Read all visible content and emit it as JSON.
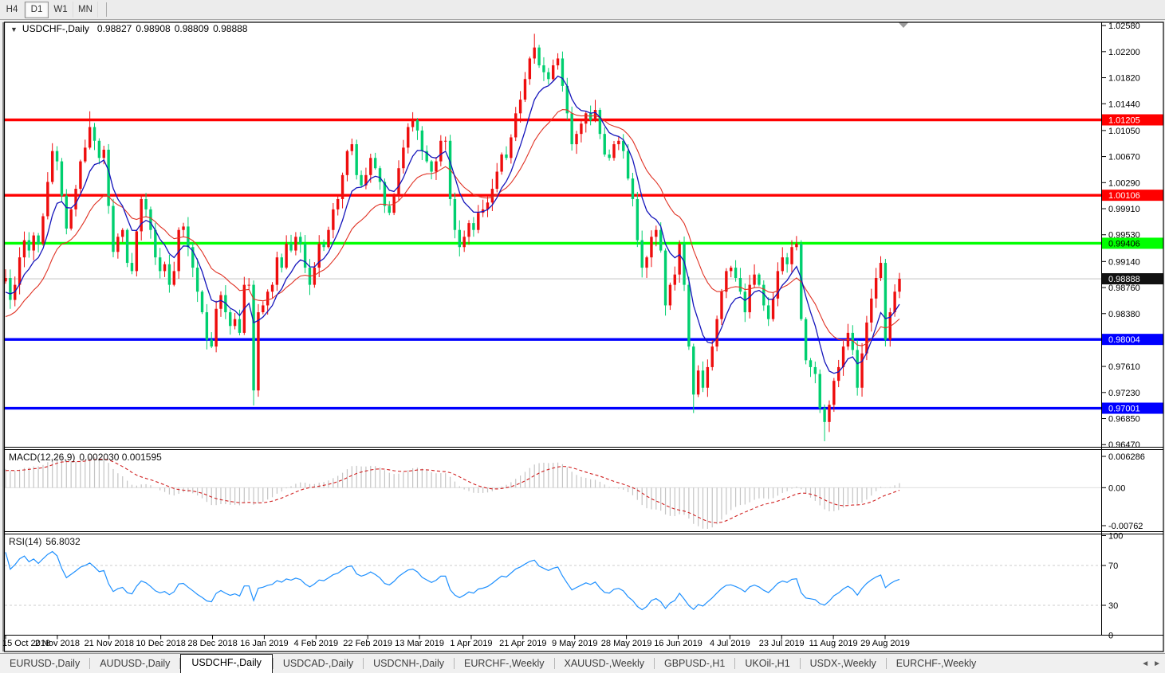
{
  "toolbar": {
    "timeframes": [
      {
        "label": "H4",
        "active": false
      },
      {
        "label": "D1",
        "active": true
      },
      {
        "label": "W1",
        "active": false
      },
      {
        "label": "MN",
        "active": false
      }
    ]
  },
  "icons": {
    "title_collapse_icon": "▼",
    "tab_scroll_left_icon": "◄",
    "tab_scroll_right_icon": "►"
  },
  "colors": {
    "bull_candle": "#ee0d0d",
    "bear_candle": "#00cf6f",
    "ma_fast": "#1515bb",
    "ma_slow": "#e03224",
    "macd_hist": "#c4c4c4",
    "macd_signal": "#d02020",
    "rsi_line": "#1e90ff",
    "rsi_level_dash": "#cccccc",
    "level_red": "#ff0000",
    "level_green": "#00ff00",
    "level_blue": "#0000ff",
    "current_price_line": "#bbbbbb",
    "current_badge_bg": "#111111",
    "pane_bg": "#ffffff"
  },
  "chart_data": {
    "type": "candlestick",
    "symbol": "USDCHF-,Daily",
    "timeframe": "Daily",
    "title_ohlc": {
      "open": "0.98827",
      "high": "0.98908",
      "low": "0.98809",
      "close": "0.98888"
    },
    "price_axis": {
      "ticks": [
        "1.02580",
        "1.02200",
        "1.01820",
        "1.01440",
        "1.01050",
        "1.00670",
        "1.00290",
        "0.99910",
        "0.99530",
        "0.99140",
        "0.98760",
        "0.98380",
        "0.97610",
        "0.97230",
        "0.96850",
        "0.96470"
      ],
      "ylim": [
        0.96449,
        1.02604
      ]
    },
    "levels": [
      {
        "price": 1.01205,
        "label": "1.01205",
        "color": "#ff0000",
        "text": "#ffffff"
      },
      {
        "price": 1.00106,
        "label": "1.00106",
        "color": "#ff0000",
        "text": "#ffffff"
      },
      {
        "price": 0.99406,
        "label": "0.99406",
        "color": "#00ff00",
        "text": "#000000"
      },
      {
        "price": 0.98004,
        "label": "0.98004",
        "color": "#0000ff",
        "text": "#ffffff"
      },
      {
        "price": 0.97001,
        "label": "0.97001",
        "color": "#0000ff",
        "text": "#ffffff"
      }
    ],
    "current_price": {
      "value": 0.98888,
      "label": "0.98888"
    },
    "dates": [
      "15 Oct 2018",
      "2 Nov 2018",
      "21 Nov 2018",
      "10 Dec 2018",
      "28 Dec 2018",
      "16 Jan 2019",
      "4 Feb 2019",
      "22 Feb 2019",
      "13 Mar 2019",
      "1 Apr 2019",
      "21 Apr 2019",
      "9 May 2019",
      "28 May 2019",
      "16 Jun 2019",
      "4 Jul 2019",
      "23 Jul 2019",
      "11 Aug 2019",
      "29 Aug 2019"
    ],
    "closes": [
      0.989,
      0.9858,
      0.988,
      0.992,
      0.9945,
      0.993,
      0.9952,
      0.994,
      0.998,
      1.003,
      1.0075,
      1.006,
      1.001,
      0.9962,
      0.999,
      1.002,
      1.006,
      1.008,
      1.011,
      1.009,
      1.0065,
      1.0077,
      0.9995,
      0.9928,
      0.995,
      0.996,
      0.9912,
      0.99,
      0.9958,
      1.0005,
      0.999,
      0.996,
      0.992,
      0.99,
      0.991,
      0.988,
      0.99,
      0.996,
      0.9965,
      0.9935,
      0.9905,
      0.987,
      0.984,
      0.98,
      0.979,
      0.9845,
      0.9865,
      0.984,
      0.982,
      0.983,
      0.981,
      0.988,
      0.988,
      0.9726,
      0.984,
      0.985,
      0.987,
      0.988,
      0.992,
      0.9905,
      0.994,
      0.993,
      0.995,
      0.994,
      0.9905,
      0.988,
      0.9905,
      0.994,
      0.9935,
      0.996,
      0.999,
      1.0005,
      1.004,
      1.0075,
      1.0085,
      1.004,
      1.0025,
      1.004,
      1.0065,
      1.005,
      1.003,
      0.9995,
      0.9985,
      1.001,
      1.005,
      1.008,
      1.011,
      1.012,
      1.0105,
      1.0075,
      1.006,
      1.0045,
      1.006,
      1.009,
      1.009,
      1.0005,
      0.996,
      0.9935,
      0.995,
      0.997,
      0.996,
      0.9985,
      0.999,
      1.0,
      1.002,
      1.0045,
      1.007,
      1.0065,
      1.0095,
      1.013,
      1.015,
      1.018,
      1.021,
      1.0226,
      1.02,
      1.019,
      1.018,
      1.02,
      1.021,
      1.017,
      1.013,
      1.0085,
      1.01,
      1.0115,
      1.013,
      1.012,
      1.0135,
      1.01,
      1.007,
      1.0065,
      1.0085,
      1.009,
      1.0075,
      1.0035,
      1.0005,
      0.9945,
      0.9905,
      0.992,
      0.995,
      0.996,
      0.993,
      0.985,
      0.988,
      0.9895,
      0.994,
      0.988,
      0.979,
      0.972,
      0.9755,
      0.973,
      0.976,
      0.979,
      0.983,
      0.987,
      0.99,
      0.9905,
      0.989,
      0.987,
      0.984,
      0.988,
      0.9895,
      0.988,
      0.985,
      0.983,
      0.986,
      0.99,
      0.992,
      0.991,
      0.9935,
      0.994,
      0.983,
      0.977,
      0.976,
      0.975,
      0.97,
      0.968,
      0.9705,
      0.974,
      0.976,
      0.979,
      0.981,
      0.9785,
      0.973,
      0.978,
      0.9825,
      0.986,
      0.989,
      0.9912,
      0.98,
      0.984,
      0.987,
      0.98888
    ],
    "open_first": 0.9885,
    "wick_overrides": {
      "high": {
        "18": 1.0133,
        "113": 1.0246
      },
      "low": {
        "1": 0.9845,
        "53": 0.9704,
        "147": 0.9693,
        "175": 0.9652
      }
    },
    "pre_history": {
      "start": 0.97,
      "bars": 30
    },
    "ma_fast_period": 8,
    "ma_slow_period": 20,
    "macd": {
      "label": "MACD(12,26,9)",
      "values": "0.002030 0.001595",
      "params": [
        12,
        26,
        9
      ],
      "axis_ticks": [
        {
          "label": "0.006286",
          "value": 0.006286
        },
        {
          "label": "0.00",
          "value": 0.0
        },
        {
          "label": "-0.00762",
          "value": -0.00762
        }
      ]
    },
    "rsi": {
      "label": "RSI(14)",
      "value": "56.8032",
      "period": 14,
      "axis_ticks": [
        {
          "label": "100",
          "value": 100
        },
        {
          "label": "70",
          "value": 70
        },
        {
          "label": "30",
          "value": 30
        },
        {
          "label": "0",
          "value": 0
        }
      ],
      "levels": [
        70,
        30
      ]
    }
  },
  "tabs": {
    "items": [
      {
        "label": "EURUSD-,Daily",
        "active": false
      },
      {
        "label": "AUDUSD-,Daily",
        "active": false
      },
      {
        "label": "USDCHF-,Daily",
        "active": true
      },
      {
        "label": "USDCAD-,Daily",
        "active": false
      },
      {
        "label": "USDCNH-,Daily",
        "active": false
      },
      {
        "label": "EURCHF-,Weekly",
        "active": false
      },
      {
        "label": "XAUUSD-,Weekly",
        "active": false
      },
      {
        "label": "GBPUSD-,H1",
        "active": false
      },
      {
        "label": "UKOil-,H1",
        "active": false
      },
      {
        "label": "USDX-,Weekly",
        "active": false
      },
      {
        "label": "EURCHF-,Weekly",
        "active": false
      }
    ]
  }
}
